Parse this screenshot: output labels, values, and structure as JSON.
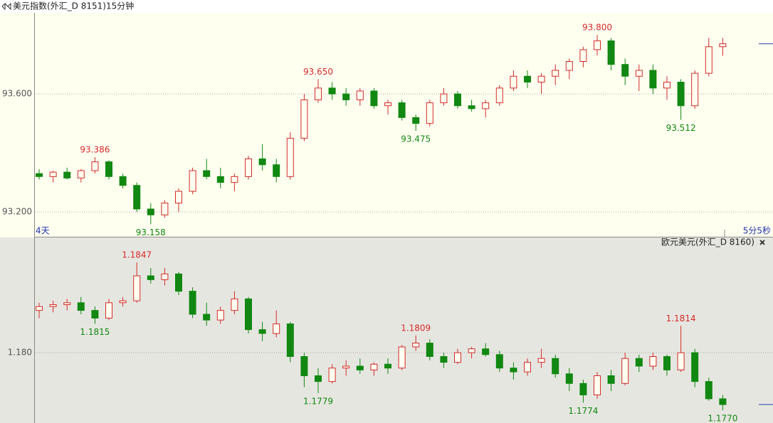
{
  "chart_data": [
    {
      "type": "candlestick",
      "title": "美元指数(外汇_D 8151)15分钟",
      "start_label": "4天",
      "timer_label": "5分5秒",
      "open": [
        93.33,
        93.32,
        93.335,
        93.315,
        93.34,
        93.37,
        93.32,
        93.29,
        93.21,
        93.19,
        93.23,
        93.27,
        93.34,
        93.32,
        93.3,
        93.32,
        93.38,
        93.36,
        93.32,
        93.45,
        93.58,
        93.62,
        93.6,
        93.58,
        93.61,
        93.56,
        93.57,
        93.52,
        93.5,
        93.57,
        93.6,
        93.56,
        93.55,
        93.57,
        93.62,
        93.66,
        93.64,
        93.66,
        93.68,
        93.71,
        93.75,
        93.78,
        93.7,
        93.66,
        93.68,
        93.62,
        93.64,
        93.56,
        93.67,
        93.76
      ],
      "high": [
        93.345,
        93.34,
        93.35,
        93.345,
        93.386,
        93.375,
        93.33,
        93.3,
        93.23,
        93.24,
        93.28,
        93.35,
        93.38,
        93.35,
        93.33,
        93.39,
        93.43,
        93.38,
        93.47,
        93.6,
        93.65,
        93.64,
        93.62,
        93.62,
        93.62,
        93.58,
        93.58,
        93.53,
        93.58,
        93.62,
        93.61,
        93.58,
        93.58,
        93.63,
        93.68,
        93.68,
        93.67,
        93.7,
        93.72,
        93.76,
        93.8,
        93.79,
        93.72,
        93.7,
        93.7,
        93.66,
        93.65,
        93.68,
        93.79,
        93.79
      ],
      "low": [
        93.31,
        93.3,
        93.31,
        93.3,
        93.33,
        93.31,
        93.28,
        93.2,
        93.158,
        93.18,
        93.2,
        93.26,
        93.31,
        93.28,
        93.27,
        93.31,
        93.34,
        93.3,
        93.31,
        93.44,
        93.57,
        93.58,
        93.56,
        93.56,
        93.55,
        93.53,
        93.51,
        93.475,
        93.49,
        93.56,
        93.55,
        93.54,
        93.52,
        93.56,
        93.61,
        93.62,
        93.6,
        93.63,
        93.65,
        93.69,
        93.73,
        93.68,
        93.63,
        93.61,
        93.6,
        93.58,
        93.512,
        93.55,
        93.66,
        93.73
      ],
      "close": [
        93.32,
        93.335,
        93.315,
        93.34,
        93.37,
        93.32,
        93.29,
        93.21,
        93.19,
        93.23,
        93.27,
        93.34,
        93.32,
        93.3,
        93.32,
        93.38,
        93.36,
        93.32,
        93.45,
        93.58,
        93.62,
        93.6,
        93.58,
        93.61,
        93.56,
        93.57,
        93.52,
        93.5,
        93.57,
        93.6,
        93.56,
        93.55,
        93.57,
        93.62,
        93.66,
        93.64,
        93.66,
        93.68,
        93.71,
        93.75,
        93.78,
        93.7,
        93.66,
        93.68,
        93.62,
        93.64,
        93.56,
        93.67,
        93.76,
        93.77
      ],
      "ylim": [
        93.116,
        93.875
      ],
      "yticks": [
        {
          "value": 93.2,
          "label": "93.200"
        },
        {
          "value": 93.6,
          "label": "93.600"
        }
      ],
      "annotations": [
        {
          "value": 93.386,
          "label": "93.386"
        },
        {
          "value": 93.158,
          "label": "93.158"
        },
        {
          "value": 93.65,
          "label": "93.650"
        },
        {
          "value": 93.475,
          "label": "93.475"
        },
        {
          "value": 93.8,
          "label": "93.800"
        },
        {
          "value": 93.512,
          "label": "93.512"
        }
      ],
      "up_color": "#d42a2a",
      "down_color": "#118811",
      "grid": true
    },
    {
      "type": "candlestick",
      "title": "欧元美元(外汇_D 8160)",
      "open": [
        1.1822,
        1.1824,
        1.1825,
        1.1826,
        1.1822,
        1.1818,
        1.1826,
        1.1827,
        1.184,
        1.1838,
        1.1841,
        1.1832,
        1.182,
        1.1817,
        1.1822,
        1.1828,
        1.1812,
        1.181,
        1.1815,
        1.1798,
        1.1788,
        1.1785,
        1.1792,
        1.1793,
        1.1791,
        1.1794,
        1.1792,
        1.1803,
        1.1805,
        1.1798,
        1.1795,
        1.18,
        1.1802,
        1.1799,
        1.1792,
        1.179,
        1.1795,
        1.1797,
        1.1789,
        1.1784,
        1.1778,
        1.1788,
        1.1784,
        1.1797,
        1.1793,
        1.1798,
        1.1791,
        1.18,
        1.1785,
        1.1776
      ],
      "high": [
        1.1826,
        1.1827,
        1.1828,
        1.1829,
        1.1824,
        1.1828,
        1.1829,
        1.1847,
        1.1844,
        1.1844,
        1.1842,
        1.1834,
        1.1826,
        1.1824,
        1.1832,
        1.1829,
        1.1816,
        1.1822,
        1.1816,
        1.18,
        1.1792,
        1.1794,
        1.1796,
        1.1797,
        1.1795,
        1.1797,
        1.1804,
        1.1809,
        1.1807,
        1.18,
        1.1802,
        1.1803,
        1.1805,
        1.1801,
        1.1795,
        1.1797,
        1.1802,
        1.1799,
        1.1792,
        1.1786,
        1.179,
        1.1791,
        1.18,
        1.1799,
        1.18,
        1.1799,
        1.1814,
        1.1802,
        1.1787,
        1.1778
      ],
      "low": [
        1.1818,
        1.1821,
        1.1822,
        1.182,
        1.1815,
        1.1817,
        1.1824,
        1.1826,
        1.1836,
        1.1835,
        1.183,
        1.1818,
        1.1814,
        1.1815,
        1.182,
        1.181,
        1.1806,
        1.1808,
        1.1795,
        1.1782,
        1.1779,
        1.1784,
        1.1788,
        1.1789,
        1.1788,
        1.1789,
        1.1791,
        1.1801,
        1.1796,
        1.1792,
        1.1794,
        1.1797,
        1.1798,
        1.179,
        1.1786,
        1.1788,
        1.1792,
        1.1787,
        1.178,
        1.1774,
        1.1776,
        1.178,
        1.1783,
        1.179,
        1.1791,
        1.1788,
        1.179,
        1.1782,
        1.1775,
        1.177
      ],
      "close": [
        1.1824,
        1.1825,
        1.1826,
        1.1822,
        1.1818,
        1.1826,
        1.1827,
        1.184,
        1.1838,
        1.1841,
        1.1832,
        1.182,
        1.1817,
        1.1822,
        1.1828,
        1.1812,
        1.181,
        1.1815,
        1.1798,
        1.1788,
        1.1785,
        1.1792,
        1.1793,
        1.1791,
        1.1794,
        1.1792,
        1.1803,
        1.1805,
        1.1798,
        1.1795,
        1.18,
        1.1802,
        1.1799,
        1.1792,
        1.179,
        1.1795,
        1.1797,
        1.1789,
        1.1784,
        1.1778,
        1.1788,
        1.1784,
        1.1797,
        1.1793,
        1.1798,
        1.1791,
        1.18,
        1.1785,
        1.1776,
        1.1773
      ],
      "ylim": [
        1.17634,
        1.18548
      ],
      "yticks": [
        {
          "value": 1.18,
          "label": "1.180"
        }
      ],
      "annotations": [
        {
          "value": 1.1847,
          "label": "1.1847"
        },
        {
          "value": 1.1815,
          "label": "1.1815"
        },
        {
          "value": 1.1779,
          "label": "1.1779"
        },
        {
          "value": 1.1809,
          "label": "1.1809"
        },
        {
          "value": 1.1774,
          "label": "1.1774"
        },
        {
          "value": 1.1814,
          "label": "1.1814"
        },
        {
          "value": 1.177,
          "label": "1.1770"
        }
      ],
      "up_color": "#d42a2a",
      "down_color": "#118811",
      "grid": true
    }
  ]
}
